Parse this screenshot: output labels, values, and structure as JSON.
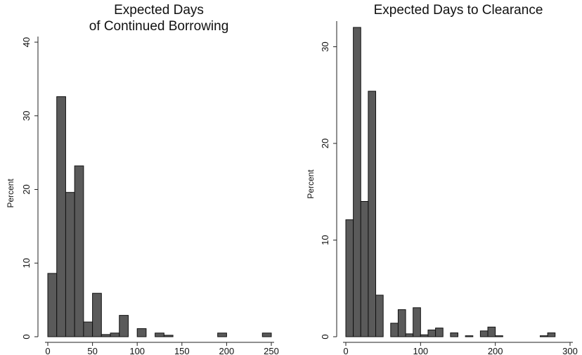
{
  "chart_data": [
    {
      "type": "bar",
      "title": [
        "Expected Days",
        "of Continued Borrowing"
      ],
      "xlabel": "",
      "ylabel": "Percent",
      "xlim": [
        0,
        250
      ],
      "ylim": [
        0,
        40
      ],
      "xticks": [
        0,
        50,
        100,
        150,
        200,
        250
      ],
      "yticks": [
        0,
        10,
        20,
        30,
        40
      ],
      "bin_width": 10,
      "bins_left": [
        0,
        10,
        20,
        30,
        40,
        50,
        60,
        70,
        80,
        90,
        100,
        110,
        120,
        130,
        140,
        150,
        160,
        170,
        180,
        190,
        200,
        210,
        220,
        230,
        240
      ],
      "values": [
        8.6,
        32.6,
        19.6,
        23.2,
        2.0,
        5.9,
        0.3,
        0.5,
        2.9,
        0,
        1.1,
        0,
        0.5,
        0.2,
        0,
        0,
        0,
        0,
        0,
        0.5,
        0,
        0,
        0,
        0,
        0.5
      ],
      "grid": false,
      "legend": "none",
      "bar_color": "#5a5a5a"
    },
    {
      "type": "bar",
      "title": [
        "Expected Days to Clearance"
      ],
      "xlabel": "",
      "ylabel": "Percent",
      "xlim": [
        0,
        300
      ],
      "ylim": [
        0,
        32
      ],
      "xticks": [
        0,
        100,
        200,
        300
      ],
      "yticks": [
        0,
        10,
        20,
        30
      ],
      "bin_width": 10,
      "bins_left": [
        0,
        10,
        20,
        30,
        40,
        50,
        60,
        70,
        80,
        90,
        100,
        110,
        120,
        130,
        140,
        150,
        160,
        170,
        180,
        190,
        200,
        210,
        220,
        230,
        240,
        250,
        260,
        270
      ],
      "values": [
        12.1,
        32.0,
        14.0,
        25.4,
        4.3,
        0,
        1.4,
        2.8,
        0.3,
        3.0,
        0.2,
        0.7,
        0.9,
        0,
        0.4,
        0,
        0.1,
        0,
        0.6,
        1.0,
        0.1,
        0,
        0,
        0,
        0,
        0,
        0.1,
        0.4
      ],
      "grid": false,
      "legend": "none",
      "bar_color": "#5a5a5a"
    }
  ]
}
